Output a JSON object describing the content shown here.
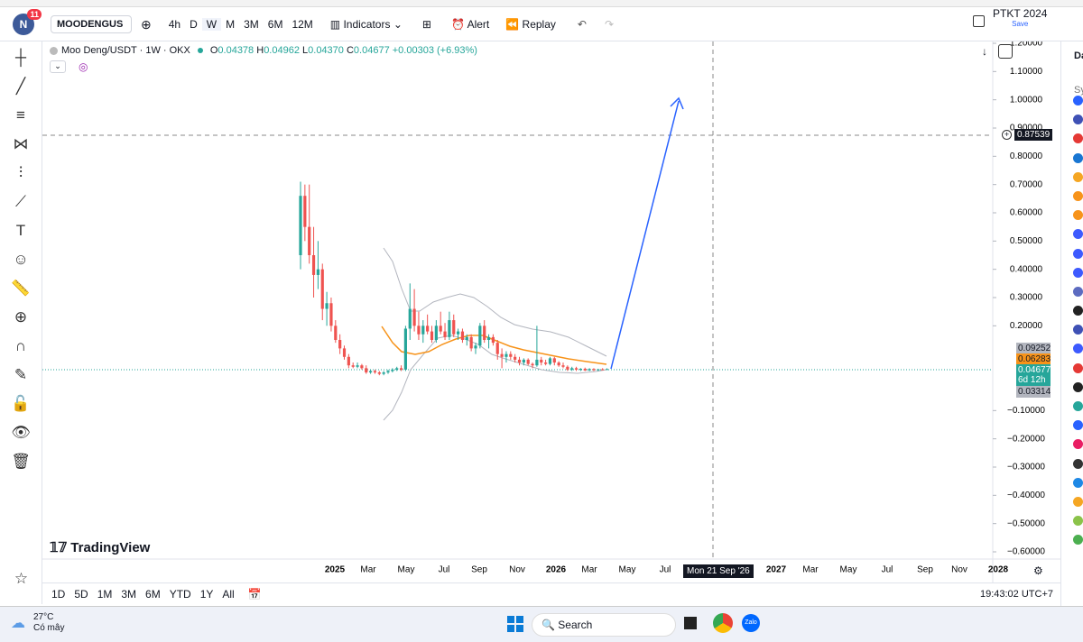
{
  "tv": {
    "notif": "11",
    "symbol": "MOODENGUS",
    "intervals": [
      "4h",
      "D",
      "W",
      "M",
      "3M",
      "6M",
      "12M"
    ],
    "indicators": "Indicators",
    "alert": "Alert",
    "replay": "Replay",
    "layout_name": "PTKT 2024",
    "save": "Save",
    "legend": {
      "title": "Moo Deng/USDT · 1W · OKX",
      "o_key": "O",
      "open": "0.04378",
      "h_key": "H",
      "high": "0.04962",
      "l_key": "L",
      "low": "0.04370",
      "c_key": "C",
      "close": "0.04677",
      "change": "+0.00303 (+6.93%)"
    },
    "badges": {
      "crosshair": "0.87539",
      "upper": "0.09252",
      "ma": "0.06283",
      "last": "0.04677",
      "countdown": "6d 12h",
      "lower": "0.03314"
    },
    "crosshair_date": "Mon 21 Sep '26",
    "logo": "TradingView",
    "time_labels": [
      "2025",
      "Mar",
      "May",
      "Jul",
      "Sep",
      "Nov",
      "2026",
      "Mar",
      "May",
      "Jul",
      "2027",
      "Mar",
      "May",
      "Jul",
      "Sep",
      "Nov",
      "2028"
    ],
    "ranges": [
      "1D",
      "5D",
      "1M",
      "3M",
      "6M",
      "YTD",
      "1Y",
      "All"
    ],
    "clock": "19:43:02 UTC+7",
    "side": [
      "Da",
      "Sy"
    ]
  },
  "taskbar": {
    "temp": "27°C",
    "weather": "Có mây",
    "search": "Search"
  },
  "chart": {
    "type": "candlestick",
    "yticks": [
      {
        "value": 1.2,
        "label": "1.20000"
      },
      {
        "value": 1.1,
        "label": "1.10000"
      },
      {
        "value": 1.0,
        "label": "1.00000"
      },
      {
        "value": 0.9,
        "label": "0.90000"
      },
      {
        "value": 0.8,
        "label": "0.80000"
      },
      {
        "value": 0.7,
        "label": "0.70000"
      },
      {
        "value": 0.6,
        "label": "0.60000"
      },
      {
        "value": 0.5,
        "label": "0.50000"
      },
      {
        "value": 0.4,
        "label": "0.40000"
      },
      {
        "value": 0.3,
        "label": "0.30000"
      },
      {
        "value": 0.2,
        "label": "0.20000"
      },
      {
        "value": -0.1,
        "label": "−0.10000"
      },
      {
        "value": -0.2,
        "label": "−0.20000"
      },
      {
        "value": -0.3,
        "label": "−0.30000"
      },
      {
        "value": -0.4,
        "label": "−0.40000"
      },
      {
        "value": -0.5,
        "label": "−0.50000"
      },
      {
        "value": -0.6,
        "label": "−0.60000"
      }
    ],
    "ylim": [
      -0.6,
      1.2
    ],
    "up_color": "#26a69a",
    "down_color": "#ef5350",
    "candles": [
      [
        0.45,
        0.71,
        0.4,
        0.66
      ],
      [
        0.66,
        0.7,
        0.5,
        0.55
      ],
      [
        0.55,
        0.7,
        0.42,
        0.45
      ],
      [
        0.45,
        0.55,
        0.3,
        0.38
      ],
      [
        0.38,
        0.5,
        0.33,
        0.4
      ],
      [
        0.4,
        0.42,
        0.22,
        0.26
      ],
      [
        0.26,
        0.32,
        0.2,
        0.28
      ],
      [
        0.28,
        0.3,
        0.18,
        0.2
      ],
      [
        0.2,
        0.22,
        0.14,
        0.15
      ],
      [
        0.15,
        0.17,
        0.1,
        0.12
      ],
      [
        0.12,
        0.13,
        0.08,
        0.09
      ],
      [
        0.09,
        0.1,
        0.05,
        0.06
      ],
      [
        0.06,
        0.07,
        0.05,
        0.055
      ],
      [
        0.055,
        0.07,
        0.05,
        0.06
      ],
      [
        0.06,
        0.065,
        0.045,
        0.05
      ],
      [
        0.05,
        0.06,
        0.03,
        0.035
      ],
      [
        0.035,
        0.045,
        0.03,
        0.04
      ],
      [
        0.04,
        0.045,
        0.03,
        0.035
      ],
      [
        0.035,
        0.04,
        0.025,
        0.03
      ],
      [
        0.03,
        0.04,
        0.025,
        0.035
      ],
      [
        0.035,
        0.045,
        0.03,
        0.04
      ],
      [
        0.04,
        0.05,
        0.035,
        0.045
      ],
      [
        0.045,
        0.055,
        0.04,
        0.05
      ],
      [
        0.05,
        0.06,
        0.04,
        0.045
      ],
      [
        0.045,
        0.2,
        0.04,
        0.19
      ],
      [
        0.19,
        0.35,
        0.15,
        0.26
      ],
      [
        0.26,
        0.33,
        0.18,
        0.2
      ],
      [
        0.2,
        0.25,
        0.15,
        0.17
      ],
      [
        0.17,
        0.22,
        0.14,
        0.2
      ],
      [
        0.2,
        0.24,
        0.17,
        0.18
      ],
      [
        0.18,
        0.2,
        0.14,
        0.15
      ],
      [
        0.15,
        0.22,
        0.14,
        0.2
      ],
      [
        0.2,
        0.25,
        0.17,
        0.18
      ],
      [
        0.18,
        0.21,
        0.15,
        0.16
      ],
      [
        0.16,
        0.25,
        0.15,
        0.22
      ],
      [
        0.22,
        0.24,
        0.16,
        0.17
      ],
      [
        0.17,
        0.19,
        0.15,
        0.18
      ],
      [
        0.18,
        0.19,
        0.14,
        0.15
      ],
      [
        0.15,
        0.17,
        0.13,
        0.16
      ],
      [
        0.16,
        0.17,
        0.11,
        0.12
      ],
      [
        0.12,
        0.14,
        0.1,
        0.13
      ],
      [
        0.13,
        0.21,
        0.12,
        0.2
      ],
      [
        0.2,
        0.22,
        0.14,
        0.15
      ],
      [
        0.15,
        0.17,
        0.12,
        0.16
      ],
      [
        0.16,
        0.17,
        0.13,
        0.14
      ],
      [
        0.14,
        0.15,
        0.08,
        0.1
      ],
      [
        0.1,
        0.12,
        0.05,
        0.09
      ],
      [
        0.09,
        0.11,
        0.07,
        0.1
      ],
      [
        0.1,
        0.11,
        0.08,
        0.09
      ],
      [
        0.09,
        0.1,
        0.07,
        0.08
      ],
      [
        0.08,
        0.09,
        0.06,
        0.07
      ],
      [
        0.07,
        0.085,
        0.06,
        0.08
      ],
      [
        0.08,
        0.085,
        0.06,
        0.065
      ],
      [
        0.065,
        0.07,
        0.05,
        0.06
      ],
      [
        0.06,
        0.2,
        0.055,
        0.08
      ],
      [
        0.08,
        0.09,
        0.06,
        0.07
      ],
      [
        0.07,
        0.08,
        0.06,
        0.065
      ],
      [
        0.065,
        0.09,
        0.06,
        0.085
      ],
      [
        0.085,
        0.09,
        0.06,
        0.07
      ],
      [
        0.07,
        0.075,
        0.055,
        0.06
      ],
      [
        0.06,
        0.07,
        0.05,
        0.055
      ],
      [
        0.055,
        0.06,
        0.04,
        0.045
      ],
      [
        0.045,
        0.055,
        0.04,
        0.05
      ],
      [
        0.05,
        0.055,
        0.04,
        0.045
      ],
      [
        0.045,
        0.05,
        0.04,
        0.048
      ],
      [
        0.048,
        0.052,
        0.04,
        0.042
      ],
      [
        0.042,
        0.05,
        0.04,
        0.047
      ],
      [
        0.047,
        0.05,
        0.04,
        0.043
      ],
      [
        0.043,
        0.048,
        0.04,
        0.046
      ],
      [
        0.046,
        0.05,
        0.043,
        0.044
      ],
      [
        0.04378,
        0.04962,
        0.0437,
        0.04677
      ]
    ]
  }
}
